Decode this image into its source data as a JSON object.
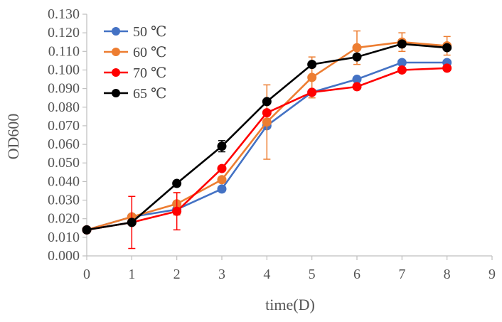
{
  "chart_data": {
    "type": "line",
    "title": "",
    "xlabel": "time(D)",
    "ylabel": "OD600",
    "xlim": [
      0,
      9
    ],
    "ylim": [
      0.0,
      0.13
    ],
    "x_ticks": [
      "0",
      "1",
      "2",
      "3",
      "4",
      "5",
      "6",
      "7",
      "8",
      "9"
    ],
    "y_ticks": [
      "0.000",
      "0.010",
      "0.020",
      "0.030",
      "0.040",
      "0.050",
      "0.060",
      "0.070",
      "0.080",
      "0.090",
      "0.100",
      "0.110",
      "0.120",
      "0.130"
    ],
    "grid": false,
    "legend_position": "top-left",
    "x": [
      0,
      1,
      2,
      3,
      4,
      5,
      6,
      7,
      8
    ],
    "series": [
      {
        "name": "50 ℃",
        "color": "#4472C4",
        "values": [
          0.014,
          0.021,
          0.025,
          0.036,
          0.07,
          0.088,
          0.095,
          0.104,
          0.104
        ],
        "errors": [
          0.001,
          0.001,
          0.001,
          0.001,
          0.001,
          0.001,
          0.001,
          0.001,
          0.001
        ]
      },
      {
        "name": "60 ℃",
        "color": "#ED7D31",
        "values": [
          0.014,
          0.021,
          0.028,
          0.041,
          0.072,
          0.096,
          0.112,
          0.115,
          0.113
        ],
        "errors": [
          0.001,
          0.001,
          0.006,
          0.001,
          0.02,
          0.011,
          0.009,
          0.005,
          0.005
        ]
      },
      {
        "name": "70 ℃",
        "color": "#FF0000",
        "values": [
          0.014,
          0.018,
          0.024,
          0.047,
          0.077,
          0.088,
          0.091,
          0.1,
          0.101
        ],
        "errors": [
          0.001,
          0.014,
          0.01,
          0.001,
          0.001,
          0.001,
          0.001,
          0.001,
          0.001
        ]
      },
      {
        "name": "65 ℃",
        "color": "#000000",
        "values": [
          0.014,
          0.018,
          0.039,
          0.059,
          0.083,
          0.103,
          0.107,
          0.114,
          0.112
        ],
        "errors": [
          0.001,
          0.001,
          0.001,
          0.003,
          0.001,
          0.001,
          0.001,
          0.001,
          0.001
        ]
      }
    ]
  }
}
